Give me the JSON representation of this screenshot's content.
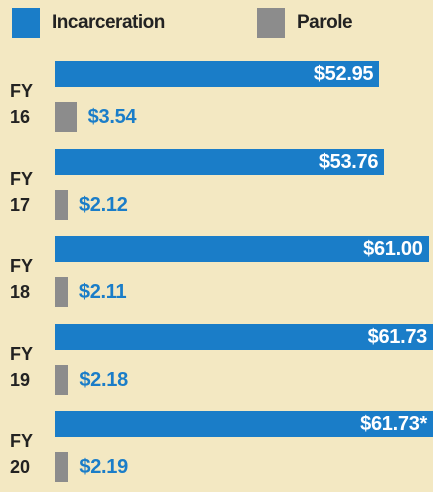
{
  "chart_data": {
    "type": "bar",
    "orientation": "horizontal",
    "categories": [
      "FY 16",
      "FY 17",
      "FY 18",
      "FY 19",
      "FY 20"
    ],
    "series": [
      {
        "name": "Incarceration",
        "color": "#1a7dc8",
        "values": [
          52.95,
          53.76,
          61.0,
          61.73,
          61.73
        ],
        "value_labels": [
          "$52.95",
          "$53.76",
          "$61.00",
          "$61.73",
          "$61.73*"
        ]
      },
      {
        "name": "Parole",
        "color": "#8c8c8c",
        "values": [
          3.54,
          2.12,
          2.11,
          2.18,
          2.19
        ],
        "value_labels": [
          "$3.54",
          "$2.12",
          "$2.11",
          "$2.18",
          "$2.19"
        ]
      }
    ]
  }
}
